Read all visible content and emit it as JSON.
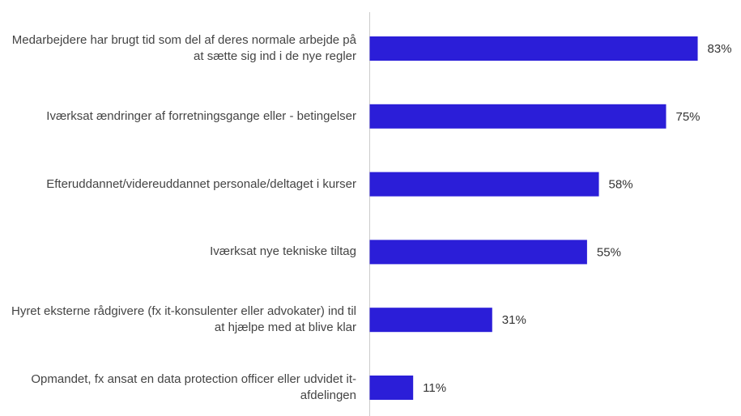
{
  "chart_data": {
    "type": "bar",
    "orientation": "horizontal",
    "categories": [
      "Medarbejdere har brugt tid som del af deres normale arbejde på at sætte sig ind i de nye regler",
      "Iværksat ændringer af forretningsgange eller - betingelser",
      "Efteruddannet/videreuddannet personale/deltaget i kurser",
      "Iværksat nye tekniske tiltag",
      "Hyret eksterne rådgivere (fx it-konsulenter eller advokater) ind til at hjælpe med at blive klar",
      "Opmandet, fx ansat en data protection officer eller udvidet it-afdelingen"
    ],
    "values": [
      83,
      75,
      58,
      55,
      31,
      11
    ],
    "value_labels": [
      "83%",
      "75%",
      "58%",
      "55%",
      "31%",
      "11%"
    ],
    "color": "#2b1ed8"
  }
}
